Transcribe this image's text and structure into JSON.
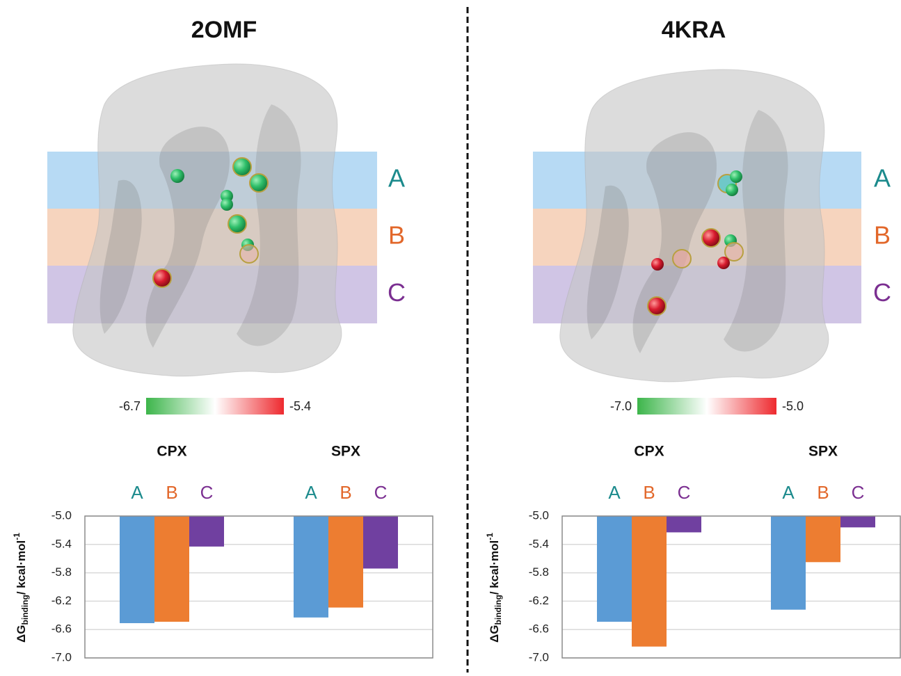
{
  "chart_data": [
    {
      "type": "bar",
      "title": "2OMF",
      "categories": [
        "CPX",
        "SPX"
      ],
      "series": [
        {
          "name": "A",
          "color": "#5b9bd5",
          "label_color": "#1b8a8c",
          "values": [
            -6.51,
            -6.43
          ]
        },
        {
          "name": "B",
          "color": "#ed7d31",
          "label_color": "#e2672a",
          "values": [
            -6.49,
            -6.29
          ]
        },
        {
          "name": "C",
          "color": "#7040a0",
          "label_color": "#7b2f91",
          "values": [
            -5.43,
            -5.74
          ]
        }
      ],
      "ylim": [
        -7,
        -5
      ],
      "yticks": [
        {
          "value": -5,
          "label": "-5.0"
        },
        -5.4,
        -5.8,
        -6.2,
        -6.6,
        {
          "value": -7,
          "label": "-7.0"
        }
      ],
      "grid": true,
      "y_label": {
        "main": "ΔG",
        "sub": "binding",
        "unit": "/ kcal·mol",
        "sup": "-1"
      },
      "colorbar": {
        "ticks": [
          -6.7,
          -5.4
        ],
        "colors": [
          "#3cb54a",
          "#ffffff",
          "#ee2a2f"
        ]
      }
    },
    {
      "type": "bar",
      "title": "4KRA",
      "categories": [
        "CPX",
        "SPX"
      ],
      "series": [
        {
          "name": "A",
          "color": "#5b9bd5",
          "label_color": "#1b8a8c",
          "values": [
            -6.49,
            -6.32
          ]
        },
        {
          "name": "B",
          "color": "#ed7d31",
          "label_color": "#e2672a",
          "values": [
            -6.84,
            -5.65
          ]
        },
        {
          "name": "C",
          "color": "#7040a0",
          "label_color": "#7b2f91",
          "values": [
            -5.23,
            -5.16
          ]
        }
      ],
      "ylim": [
        -7,
        -5
      ],
      "yticks": [
        {
          "value": -5,
          "label": "-5.0"
        },
        -5.4,
        -5.8,
        -6.2,
        -6.6,
        {
          "value": -7,
          "label": "-7.0"
        }
      ],
      "grid": true,
      "y_label": {
        "main": "ΔG",
        "sub": "binding",
        "unit": "/ kcal·mol",
        "sup": "-1"
      },
      "colorbar": {
        "ticks": [
          {
            "value": -7,
            "label": "-7.0"
          },
          {
            "value": -5,
            "label": "-5.0"
          }
        ],
        "colors": [
          "#3cb54a",
          "#ffffff",
          "#ee2a2f"
        ]
      }
    }
  ]
}
